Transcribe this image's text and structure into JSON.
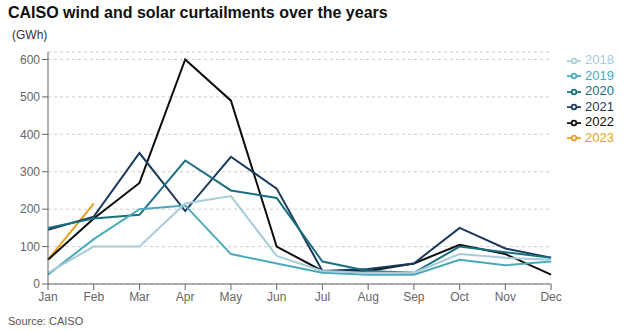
{
  "chart_data": {
    "type": "line",
    "title": "CAISO wind and solar curtailments over the years",
    "ylabel": "(GWh)",
    "annotations": [
      "Source: CAISO"
    ],
    "categories": [
      "Jan",
      "Feb",
      "Mar",
      "Apr",
      "May",
      "Jun",
      "Jul",
      "Aug",
      "Sep",
      "Oct",
      "Nov",
      "Dec"
    ],
    "series": [
      {
        "name": "2023",
        "color": "#E8A020",
        "values": [
          65,
          215,
          null,
          null,
          null,
          null,
          null,
          null,
          null,
          null,
          null,
          null
        ]
      },
      {
        "name": "2022",
        "color": "#0d0d0d",
        "values": [
          65,
          175,
          270,
          600,
          490,
          100,
          35,
          35,
          55,
          105,
          80,
          25
        ]
      },
      {
        "name": "2021",
        "color": "#1a3a5c",
        "values": [
          145,
          180,
          350,
          195,
          340,
          255,
          35,
          40,
          55,
          150,
          95,
          70
        ]
      },
      {
        "name": "2020",
        "color": "#1a7080",
        "values": [
          150,
          175,
          185,
          330,
          250,
          230,
          60,
          35,
          30,
          100,
          85,
          70
        ]
      },
      {
        "name": "2019",
        "color": "#4aaabb",
        "values": [
          25,
          120,
          200,
          210,
          80,
          55,
          30,
          25,
          25,
          65,
          50,
          60
        ]
      },
      {
        "name": "2018",
        "color": "#a8ccd8",
        "values": [
          30,
          100,
          100,
          215,
          235,
          75,
          35,
          30,
          30,
          80,
          70,
          65
        ]
      }
    ],
    "ylim": [
      0,
      620
    ],
    "yticks": [
      0,
      100,
      200,
      300,
      400,
      500,
      600
    ],
    "grid": true,
    "legend": "right"
  }
}
